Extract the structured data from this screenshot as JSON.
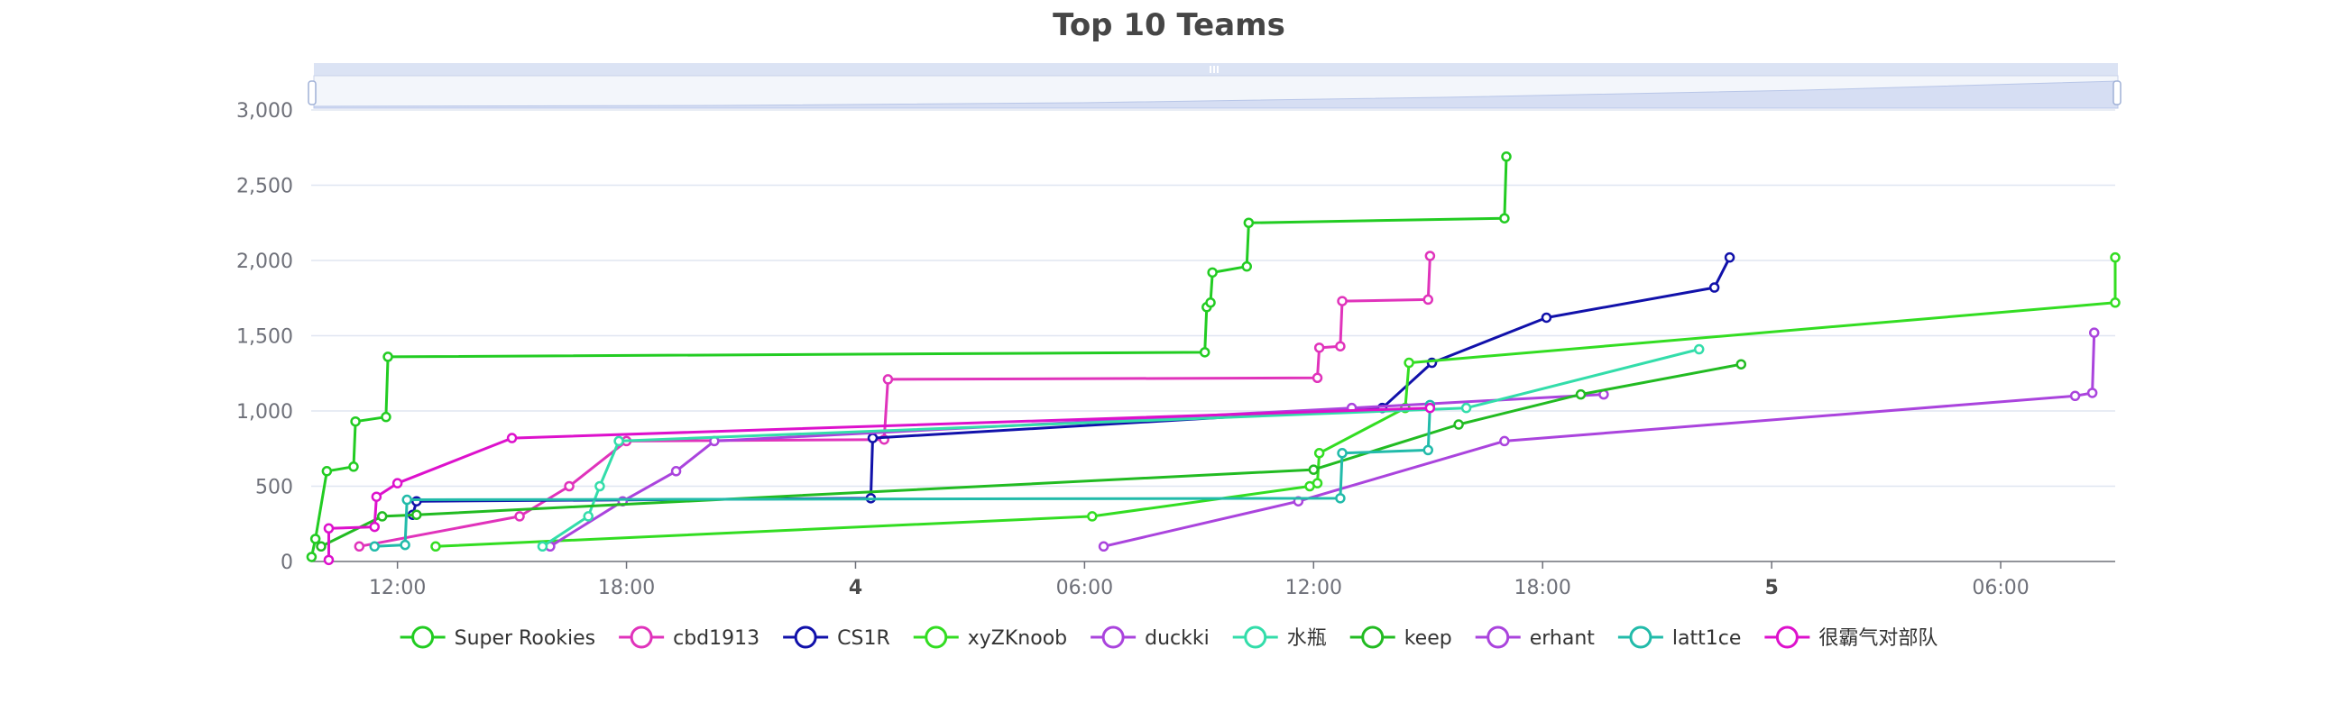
{
  "chart_data": {
    "type": "line",
    "title": "Top 10 Teams",
    "xlabel": "",
    "ylabel": "",
    "x_unit": "hours",
    "xlim": [
      0.74,
      48.0
    ],
    "ylim": [
      0,
      3000
    ],
    "y_ticks": [
      0,
      500,
      1000,
      1500,
      2000,
      2500,
      3000
    ],
    "y_tick_labels": [
      "0",
      "500",
      "1,000",
      "1,500",
      "2,000",
      "2,500",
      "3,000"
    ],
    "x_ticks": [
      {
        "value": 3,
        "label": "12:00",
        "bold": false
      },
      {
        "value": 9,
        "label": "18:00",
        "bold": false
      },
      {
        "value": 15,
        "label": "4",
        "bold": true
      },
      {
        "value": 21,
        "label": "06:00",
        "bold": false
      },
      {
        "value": 27,
        "label": "12:00",
        "bold": false
      },
      {
        "value": 33,
        "label": "18:00",
        "bold": false
      },
      {
        "value": 39,
        "label": "5",
        "bold": true
      },
      {
        "value": 45,
        "label": "06:00",
        "bold": false
      }
    ],
    "grid": true,
    "legend_position": "bottom",
    "datazoom_slider": true,
    "series": [
      {
        "name": "Super Rookies",
        "color": "#22cc22",
        "points": [
          [
            0.75,
            30
          ],
          [
            0.85,
            150
          ],
          [
            1.15,
            600
          ],
          [
            1.85,
            630
          ],
          [
            1.9,
            930
          ],
          [
            2.7,
            960
          ],
          [
            2.75,
            1360
          ],
          [
            24.15,
            1390
          ],
          [
            24.2,
            1690
          ],
          [
            24.3,
            1720
          ],
          [
            24.35,
            1920
          ],
          [
            25.25,
            1960
          ],
          [
            25.3,
            2250
          ],
          [
            32.0,
            2280
          ],
          [
            32.05,
            2690
          ]
        ]
      },
      {
        "name": "cbd1913",
        "color": "#e033bb",
        "points": [
          [
            2.0,
            100
          ],
          [
            6.2,
            300
          ],
          [
            7.5,
            500
          ],
          [
            9.0,
            800
          ],
          [
            15.75,
            810
          ],
          [
            15.85,
            1210
          ],
          [
            27.1,
            1220
          ],
          [
            27.15,
            1420
          ],
          [
            27.7,
            1430
          ],
          [
            27.75,
            1730
          ],
          [
            30.0,
            1740
          ],
          [
            30.05,
            2030
          ]
        ]
      },
      {
        "name": "CS1R",
        "color": "#1111aa",
        "points": [
          [
            3.4,
            310
          ],
          [
            3.5,
            400
          ],
          [
            15.4,
            420
          ],
          [
            15.45,
            820
          ],
          [
            28.8,
            1020
          ],
          [
            30.1,
            1320
          ],
          [
            33.1,
            1620
          ],
          [
            37.5,
            1820
          ],
          [
            37.9,
            2020
          ]
        ]
      },
      {
        "name": "xyZKnoob",
        "color": "#33dd22",
        "points": [
          [
            4.0,
            100
          ],
          [
            21.2,
            300
          ],
          [
            26.9,
            500
          ],
          [
            27.1,
            520
          ],
          [
            27.15,
            720
          ],
          [
            29.4,
            1020
          ],
          [
            29.5,
            1320
          ],
          [
            48.0,
            1720
          ],
          [
            48.0,
            2020
          ]
        ]
      },
      {
        "name": "duckki",
        "color": "#aa44dd",
        "points": [
          [
            7.0,
            100
          ],
          [
            8.9,
            400
          ],
          [
            10.3,
            600
          ],
          [
            11.3,
            800
          ],
          [
            28.0,
            1020
          ],
          [
            34.6,
            1110
          ]
        ]
      },
      {
        "name": "水瓶",
        "color": "#33ddaa",
        "points": [
          [
            6.8,
            100
          ],
          [
            8.0,
            300
          ],
          [
            8.3,
            500
          ],
          [
            8.8,
            800
          ],
          [
            31.0,
            1020
          ],
          [
            37.1,
            1410
          ]
        ]
      },
      {
        "name": "keep",
        "color": "#22bb22",
        "points": [
          [
            1.0,
            100
          ],
          [
            2.6,
            300
          ],
          [
            3.5,
            310
          ],
          [
            27.0,
            610
          ],
          [
            30.8,
            910
          ],
          [
            34.0,
            1110
          ],
          [
            38.2,
            1310
          ]
        ]
      },
      {
        "name": "erhant",
        "color": "#aa44dd",
        "points": [
          [
            21.5,
            100
          ],
          [
            26.6,
            400
          ],
          [
            32.0,
            800
          ],
          [
            46.95,
            1100
          ],
          [
            47.4,
            1120
          ],
          [
            47.45,
            1520
          ]
        ]
      },
      {
        "name": "latt1ce",
        "color": "#22bbaa",
        "points": [
          [
            2.4,
            100
          ],
          [
            3.2,
            110
          ],
          [
            3.25,
            410
          ],
          [
            27.7,
            420
          ],
          [
            27.75,
            720
          ],
          [
            30.0,
            740
          ],
          [
            30.05,
            1040
          ]
        ]
      },
      {
        "name": "很霸气对部队",
        "color": "#dd11cc",
        "points": [
          [
            1.2,
            10
          ],
          [
            1.2,
            220
          ],
          [
            2.4,
            230
          ],
          [
            2.45,
            430
          ],
          [
            3.0,
            520
          ],
          [
            6.0,
            820
          ],
          [
            30.05,
            1020
          ]
        ]
      }
    ]
  }
}
